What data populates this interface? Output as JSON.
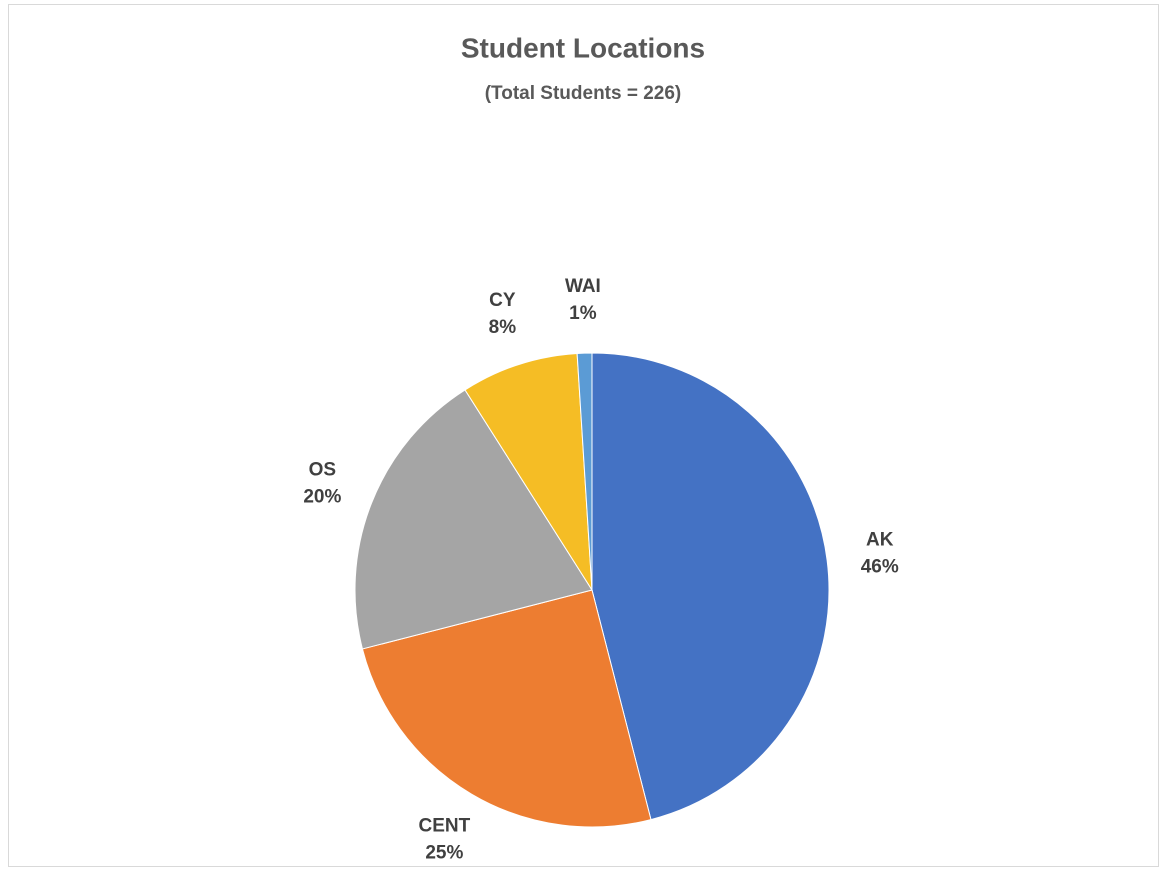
{
  "chart_data": {
    "type": "pie",
    "title": "Student Locations",
    "subtitle": "(Total Students = 226)",
    "categories": [
      "AK",
      "CENT",
      "OS",
      "CY",
      "WAI"
    ],
    "values": [
      46,
      25,
      20,
      8,
      1
    ],
    "value_labels": [
      "46%",
      "25%",
      "20%",
      "8%",
      "1%"
    ],
    "colors": [
      "#4472c4",
      "#ed7d31",
      "#a5a5a5",
      "#f5bd25",
      "#5b9bd5"
    ]
  }
}
